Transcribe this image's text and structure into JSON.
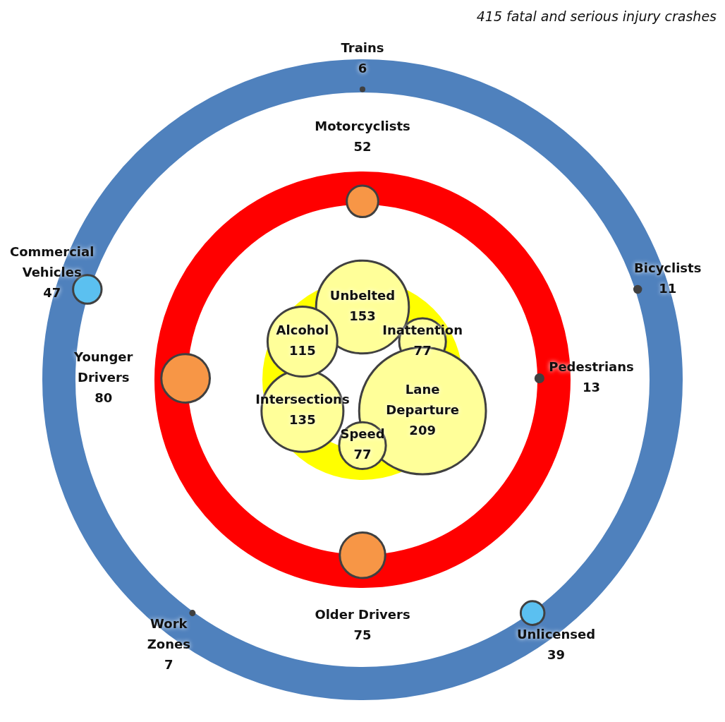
{
  "chart_data": [
    {
      "type": "other",
      "subtitle": "415 fatal and serious injury crashes",
      "data_labels": true,
      "color": "#ffff00",
      "categories": [
        "Unbelted",
        "Inattention",
        "Lane Departure",
        "Speed",
        "Intersections",
        "Alcohol"
      ],
      "values": [
        153,
        77,
        209,
        77,
        135,
        115
      ],
      "colors": [
        "#ffff99",
        "#ffff99",
        "#ffff99",
        "#ffff99",
        "#ffff99",
        "#ffff99"
      ]
    },
    {
      "type": "other",
      "data_labels": true,
      "color": "#ff0000",
      "categories": [
        "Motorcyclists",
        "Pedestrians",
        "Older Drivers",
        "Younger Drivers"
      ],
      "values": [
        52,
        13,
        75,
        80
      ],
      "colors": [
        "#f79646",
        "#404040",
        "#f79646",
        "#f79646"
      ]
    },
    {
      "type": "other",
      "data_labels": true,
      "color": "#4f81bd",
      "categories": [
        "Trains",
        "Bicyclists",
        "Unlicensed",
        "Work Zones",
        "Commercial Vehicles"
      ],
      "values": [
        6,
        11,
        39,
        7,
        47
      ],
      "colors": [
        "#404040",
        "#404040",
        "#5bc0f0",
        "#404040",
        "#5bc0f0"
      ]
    }
  ]
}
